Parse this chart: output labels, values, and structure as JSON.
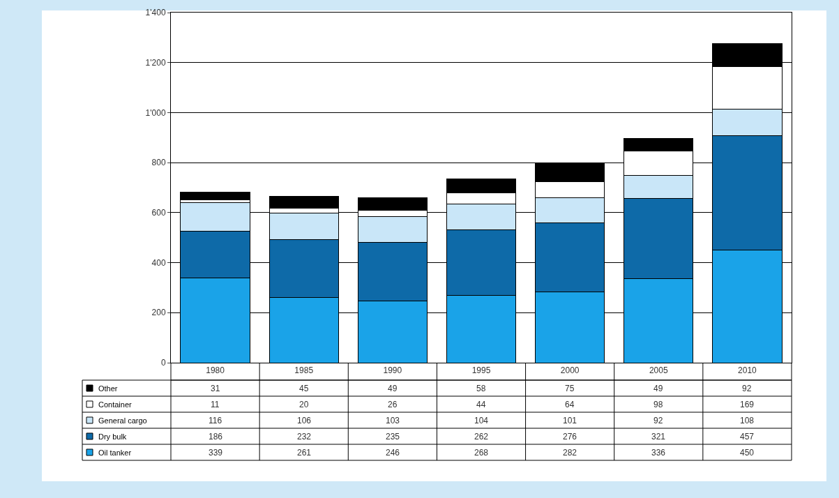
{
  "chart_data": {
    "type": "bar",
    "stacked": true,
    "data_labels": true,
    "grid": "y",
    "legend": "bottom left",
    "categories": [
      "1980",
      "1985",
      "1990",
      "1995",
      "2000",
      "2005",
      "2010"
    ],
    "ylim": [
      0,
      1400
    ],
    "yticks": [
      0,
      200,
      400,
      600,
      800,
      {
        "value": 1000,
        "label": "1'000"
      },
      {
        "value": 1200,
        "label": "1'200"
      },
      {
        "value": 1400,
        "label": "1'400"
      }
    ],
    "series": [
      {
        "name": "Oil tanker",
        "color": "#1aa3e8",
        "values": [
          339,
          261,
          246,
          268,
          282,
          336,
          450
        ]
      },
      {
        "name": "Dry bulk",
        "color": "#0e6aa8",
        "values": [
          186,
          232,
          235,
          262,
          276,
          321,
          457
        ]
      },
      {
        "name": "General cargo",
        "color": "#c9e6f8",
        "values": [
          116,
          106,
          103,
          104,
          101,
          92,
          108
        ]
      },
      {
        "name": "Container",
        "color": "#ffffff",
        "values": [
          11,
          20,
          26,
          44,
          64,
          98,
          169
        ]
      },
      {
        "name": "Other",
        "color": "#000000",
        "values": [
          31,
          45,
          49,
          58,
          75,
          49,
          92
        ]
      }
    ]
  }
}
